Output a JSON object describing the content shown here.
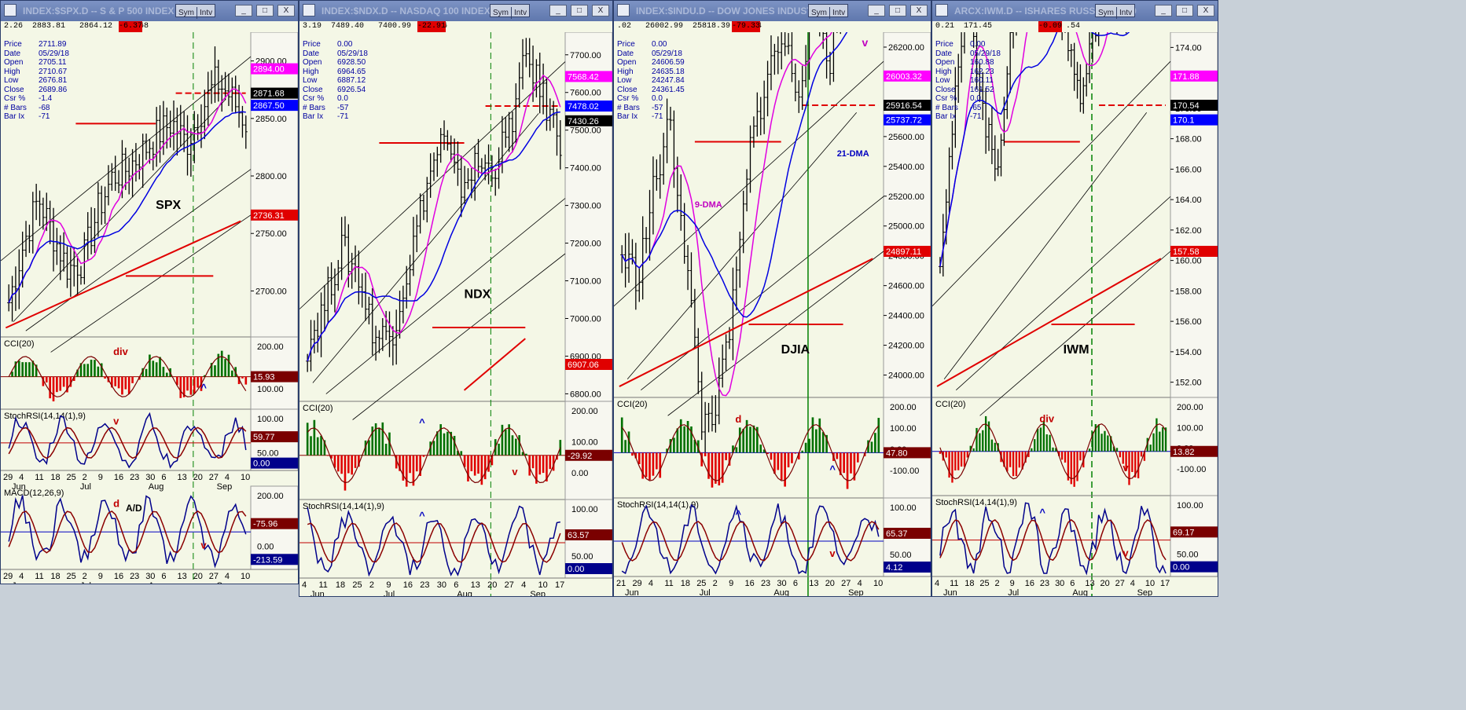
{
  "windows": [
    {
      "id": "spx",
      "title": "INDEX:$SPX.D -- S & P 500 INDEX",
      "header_values": [
        "2.26",
        "2883.81",
        "2864.12",
        ".68"
      ],
      "header_neg": "-6.37",
      "info": {
        "Price": "2711.89",
        "Date": "05/29/18",
        "Open": "2705.11",
        "High": "2710.67",
        "Low": "2676.81",
        "Close": "2689.86",
        "Csr %": "-1.4",
        "# Bars": "-68",
        "Bar Ix": "-71"
      },
      "label": "SPX",
      "price_axis": [
        2900,
        2850,
        2800,
        2750,
        2700
      ],
      "price_axis_labels": [
        "2900.00",
        "2850.00",
        "2800.00",
        "2750.00",
        "2700.00"
      ],
      "tags": [
        {
          "v": "2894.00",
          "c": "#ff00ff"
        },
        {
          "v": "2871.68",
          "c": "#000000"
        },
        {
          "v": "2867.50",
          "c": "#0000ff"
        },
        {
          "v": "2736.31",
          "c": "#e00000"
        }
      ],
      "ind1": {
        "name": "CCI(20)",
        "ticks": [
          "200.00",
          "100.00"
        ],
        "tag": "15.93",
        "tagc": "#7a0000",
        "notes": [
          "div",
          "^"
        ]
      },
      "ind2": {
        "name": "StochRSI(14,14(1),9)",
        "ticks": [
          "100.00",
          "50.00"
        ],
        "tags": [
          {
            "v": "59.77",
            "c": "#7a0000"
          },
          {
            "v": "0.00",
            "c": "#00008b"
          }
        ],
        "notes": [
          "v"
        ]
      },
      "ind3": {
        "name": "MACD(12,26,9)",
        "ticks": [
          "200.00",
          "0.00"
        ],
        "tags": [
          {
            "v": "-75.96",
            "c": "#7a0000"
          },
          {
            "v": "-213.59",
            "c": "#00008b"
          }
        ],
        "label": "A/D",
        "notes": [
          "d",
          "v"
        ]
      },
      "xaxis": {
        "days": [
          "29",
          "4",
          "11",
          "18",
          "25",
          "2",
          "9",
          "16",
          "23",
          "30",
          "6",
          "13",
          "20",
          "27",
          "4",
          "10"
        ],
        "months": [
          "Jun",
          "Jul",
          "Aug",
          "Sep"
        ]
      }
    },
    {
      "id": "ndx",
      "title": "INDEX:$NDX.D -- NASDAQ 100 INDEX",
      "header_values": [
        "3.19",
        "7489.40",
        "7400.99",
        ".26"
      ],
      "header_neg": "-22.91",
      "info": {
        "Price": "0.00",
        "Date": "05/29/18",
        "Open": "6928.50",
        "High": "6964.65",
        "Low": "6887.12",
        "Close": "6926.54",
        "Csr %": "0.0",
        "# Bars": "-57",
        "Bar Ix": "-71"
      },
      "label": "NDX",
      "price_axis": [
        7700,
        7600,
        7500,
        7400,
        7300,
        7200,
        7100,
        7000,
        6900,
        6800
      ],
      "price_axis_labels": [
        "7700.00",
        "7600.00",
        "7500.00",
        "7400.00",
        "7300.00",
        "7200.00",
        "7100.00",
        "7000.00",
        "6900.00",
        "6800.00"
      ],
      "tags": [
        {
          "v": "7568.42",
          "c": "#ff00ff"
        },
        {
          "v": "7478.02",
          "c": "#0000ff"
        },
        {
          "v": "7430.26",
          "c": "#000000"
        },
        {
          "v": "6907.06",
          "c": "#e00000"
        }
      ],
      "ind1": {
        "name": "CCI(20)",
        "ticks": [
          "200.00",
          "100.00",
          "0.00"
        ],
        "tag": "-29.92",
        "tagc": "#7a0000",
        "notes": [
          "^",
          "v"
        ]
      },
      "ind2": {
        "name": "StochRSI(14,14(1),9)",
        "ticks": [
          "100.00",
          "50.00"
        ],
        "tags": [
          {
            "v": "63.57",
            "c": "#7a0000"
          },
          {
            "v": "0.00",
            "c": "#00008b"
          }
        ],
        "notes": [
          "^"
        ]
      },
      "xaxis": {
        "days": [
          "4",
          "11",
          "18",
          "25",
          "2",
          "9",
          "16",
          "23",
          "30",
          "6",
          "13",
          "20",
          "27",
          "4",
          "10",
          "17"
        ],
        "months": [
          "Jun",
          "Jul",
          "Aug",
          "Sep"
        ]
      }
    },
    {
      "id": "djia",
      "title": "INDEX:$INDU.D -- DOW JONES INDUSTRIALS",
      "header_values": [
        ".02",
        "26002.99",
        "25818.39",
        ".54"
      ],
      "header_neg": "-79.33",
      "info": {
        "Price": "0.00",
        "Date": "05/29/18",
        "Open": "24606.59",
        "High": "24635.18",
        "Low": "24247.84",
        "Close": "24361.45",
        "Csr %": "0.0",
        "# Bars": "-57",
        "Bar Ix": "-71"
      },
      "label": "DJIA",
      "price_axis": [
        26200,
        26000,
        25800,
        25600,
        25400,
        25200,
        25000,
        24800,
        24600,
        24400,
        24200,
        24000
      ],
      "price_axis_labels": [
        "26200.00",
        "26000.00",
        "25800.00",
        "25600.00",
        "25400.00",
        "25200.00",
        "25000.00",
        "24800.00",
        "24600.00",
        "24400.00",
        "24200.00",
        "24000.00"
      ],
      "tags": [
        {
          "v": "26003.32",
          "c": "#ff00ff"
        },
        {
          "v": "25916.54",
          "c": "#000000"
        },
        {
          "v": "25737.72",
          "c": "#0000ff"
        },
        {
          "v": "24897.11",
          "c": "#e00000"
        }
      ],
      "annot": [
        "9-DMA",
        "21-DMA",
        "v"
      ],
      "ind1": {
        "name": "CCI(20)",
        "ticks": [
          "200.00",
          "100.00",
          "0.00",
          "-100.00"
        ],
        "tag": "47.80",
        "tagc": "#7a0000",
        "notes": [
          "d",
          "^"
        ]
      },
      "ind2": {
        "name": "StochRSI(14,14(1),9)",
        "ticks": [
          "100.00",
          "50.00"
        ],
        "tags": [
          {
            "v": "65.37",
            "c": "#7a0000"
          },
          {
            "v": "4.12",
            "c": "#00008b"
          }
        ],
        "notes": [
          "^",
          "v"
        ]
      },
      "xaxis": {
        "days": [
          "21",
          "29",
          "4",
          "11",
          "18",
          "25",
          "2",
          "9",
          "16",
          "23",
          "30",
          "6",
          "13",
          "20",
          "27",
          "4",
          "10"
        ],
        "months": [
          "Jun",
          "Jul",
          "Aug",
          "Sep"
        ]
      }
    },
    {
      "id": "iwm",
      "title": "ARCX:IWM.D -- ISHARES RUSSELL 2000",
      "header_values": [
        "0.21",
        "171.45",
        "",
        ".54"
      ],
      "header_neg": "-0.09",
      "info": {
        "Price": "0.00",
        "Date": "05/29/18",
        "Open": "160.88",
        "High": "162.23",
        "Low": "160.11",
        "Close": "161.52",
        "Csr %": "0.0",
        "# Bars": "-65",
        "Bar Ix": "-71"
      },
      "label": "IWM",
      "price_axis": [
        174,
        172,
        170,
        168,
        166,
        164,
        162,
        160,
        158,
        156,
        154,
        152
      ],
      "price_axis_labels": [
        "174.00",
        "172.00",
        "170.00",
        "168.00",
        "166.00",
        "164.00",
        "162.00",
        "160.00",
        "158.00",
        "156.00",
        "154.00",
        "152.00"
      ],
      "tags": [
        {
          "v": "171.88",
          "c": "#ff00ff"
        },
        {
          "v": "170.54",
          "c": "#000000"
        },
        {
          "v": "170.1",
          "c": "#0000ff"
        },
        {
          "v": "157.58",
          "c": "#e00000"
        }
      ],
      "ind1": {
        "name": "CCI(20)",
        "ticks": [
          "200.00",
          "100.00",
          "0.00",
          "-100.00"
        ],
        "tag": "13.82",
        "tagc": "#7a0000",
        "notes": [
          "div",
          "v",
          "^"
        ]
      },
      "ind2": {
        "name": "StochRSI(14,14(1),9)",
        "ticks": [
          "100.00",
          "50.00"
        ],
        "tags": [
          {
            "v": "69.17",
            "c": "#7a0000"
          },
          {
            "v": "0.00",
            "c": "#00008b"
          }
        ],
        "notes": [
          "^",
          "v"
        ]
      },
      "xaxis": {
        "days": [
          "4",
          "11",
          "18",
          "25",
          "2",
          "9",
          "16",
          "23",
          "30",
          "6",
          "13",
          "20",
          "27",
          "4",
          "10",
          "17"
        ],
        "months": [
          "Jun",
          "Jul",
          "Aug",
          "Sep"
        ]
      }
    }
  ],
  "buttons": {
    "sym": "Sym",
    "intv": "Intv",
    "min": "_",
    "max": "□",
    "close": "X"
  },
  "colors": {
    "bg": "#f4f7e6",
    "bull": "#007000",
    "bear": "#e00000",
    "ma9": "#e000e0",
    "ma21": "#0000e0",
    "ma200": "#e00000",
    "stoch_k": "#00008b",
    "stoch_d": "#8b0000",
    "vline": "#008000"
  },
  "chart_data": [
    {
      "type": "line",
      "title": "INDEX:$SPX.D -- S & P 500 INDEX",
      "series": [
        {
          "name": "",
          "values": [
            2676,
            2700,
            2735,
            2775,
            2722,
            2700,
            2695,
            2720,
            2760,
            2790,
            2805,
            2815,
            2830,
            2850,
            2855,
            2835,
            2850,
            2880,
            2906,
            2885,
            2872
          ]
        }
      ],
      "ylim": [
        2660,
        2925
      ]
    },
    {
      "type": "line",
      "title": "INDEX:$NDX.D -- NASDAQ 100 INDEX",
      "series": [
        {
          "name": "",
          "values": [
            6930,
            7050,
            7150,
            7210,
            7160,
            6960,
            6970,
            7150,
            7330,
            7440,
            7300,
            7390,
            7460,
            7480,
            7350,
            7440,
            7480,
            7550,
            7680,
            7650,
            7430
          ]
        }
      ],
      "ylim": [
        6780,
        7760
      ]
    },
    {
      "type": "line",
      "title": "INDEX:$INDU.D -- DOW JONES INDUSTRIALS",
      "series": [
        {
          "name": "",
          "values": [
            24800,
            24700,
            24450,
            24950,
            25300,
            25100,
            24700,
            24200,
            24300,
            24800,
            25100,
            25400,
            25500,
            25200,
            25600,
            25150,
            25350,
            25900,
            26100,
            26000,
            25916
          ]
        }
      ],
      "ylim": [
        23850,
        26300
      ]
    },
    {
      "type": "line",
      "title": "ARCX:IWM.D -- ISHARES RUSSELL 2000",
      "series": [
        {
          "name": "",
          "values": [
            160.5,
            164,
            167,
            168,
            165,
            162.5,
            165,
            168.5,
            168,
            167,
            168,
            166,
            164.5,
            166.5,
            168,
            167,
            169,
            171.5,
            173,
            172,
            170.5
          ]
        }
      ],
      "ylim": [
        151,
        175
      ]
    }
  ]
}
